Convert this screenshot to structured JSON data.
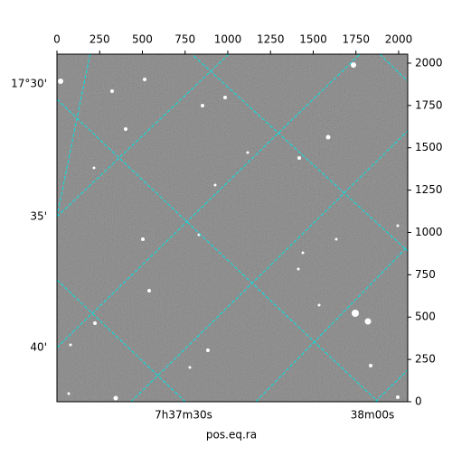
{
  "chart_data": {
    "type": "image",
    "xlabel": "pos.eq.ra",
    "xlim": [
      0,
      2053
    ],
    "xticks": [
      0,
      250,
      500,
      750,
      1000,
      1250,
      1500,
      1750,
      2000
    ],
    "ylim": [
      0,
      2053
    ],
    "yticks": [
      0,
      250,
      500,
      750,
      1000,
      1250,
      1500,
      1750,
      2000
    ],
    "dec_tick_labels": [
      "17°30'",
      "35'",
      "40'"
    ],
    "ra_tick_labels": [
      "7h37m30s",
      "38m00s"
    ],
    "grid": true,
    "grid_color": "#00e5e5"
  }
}
